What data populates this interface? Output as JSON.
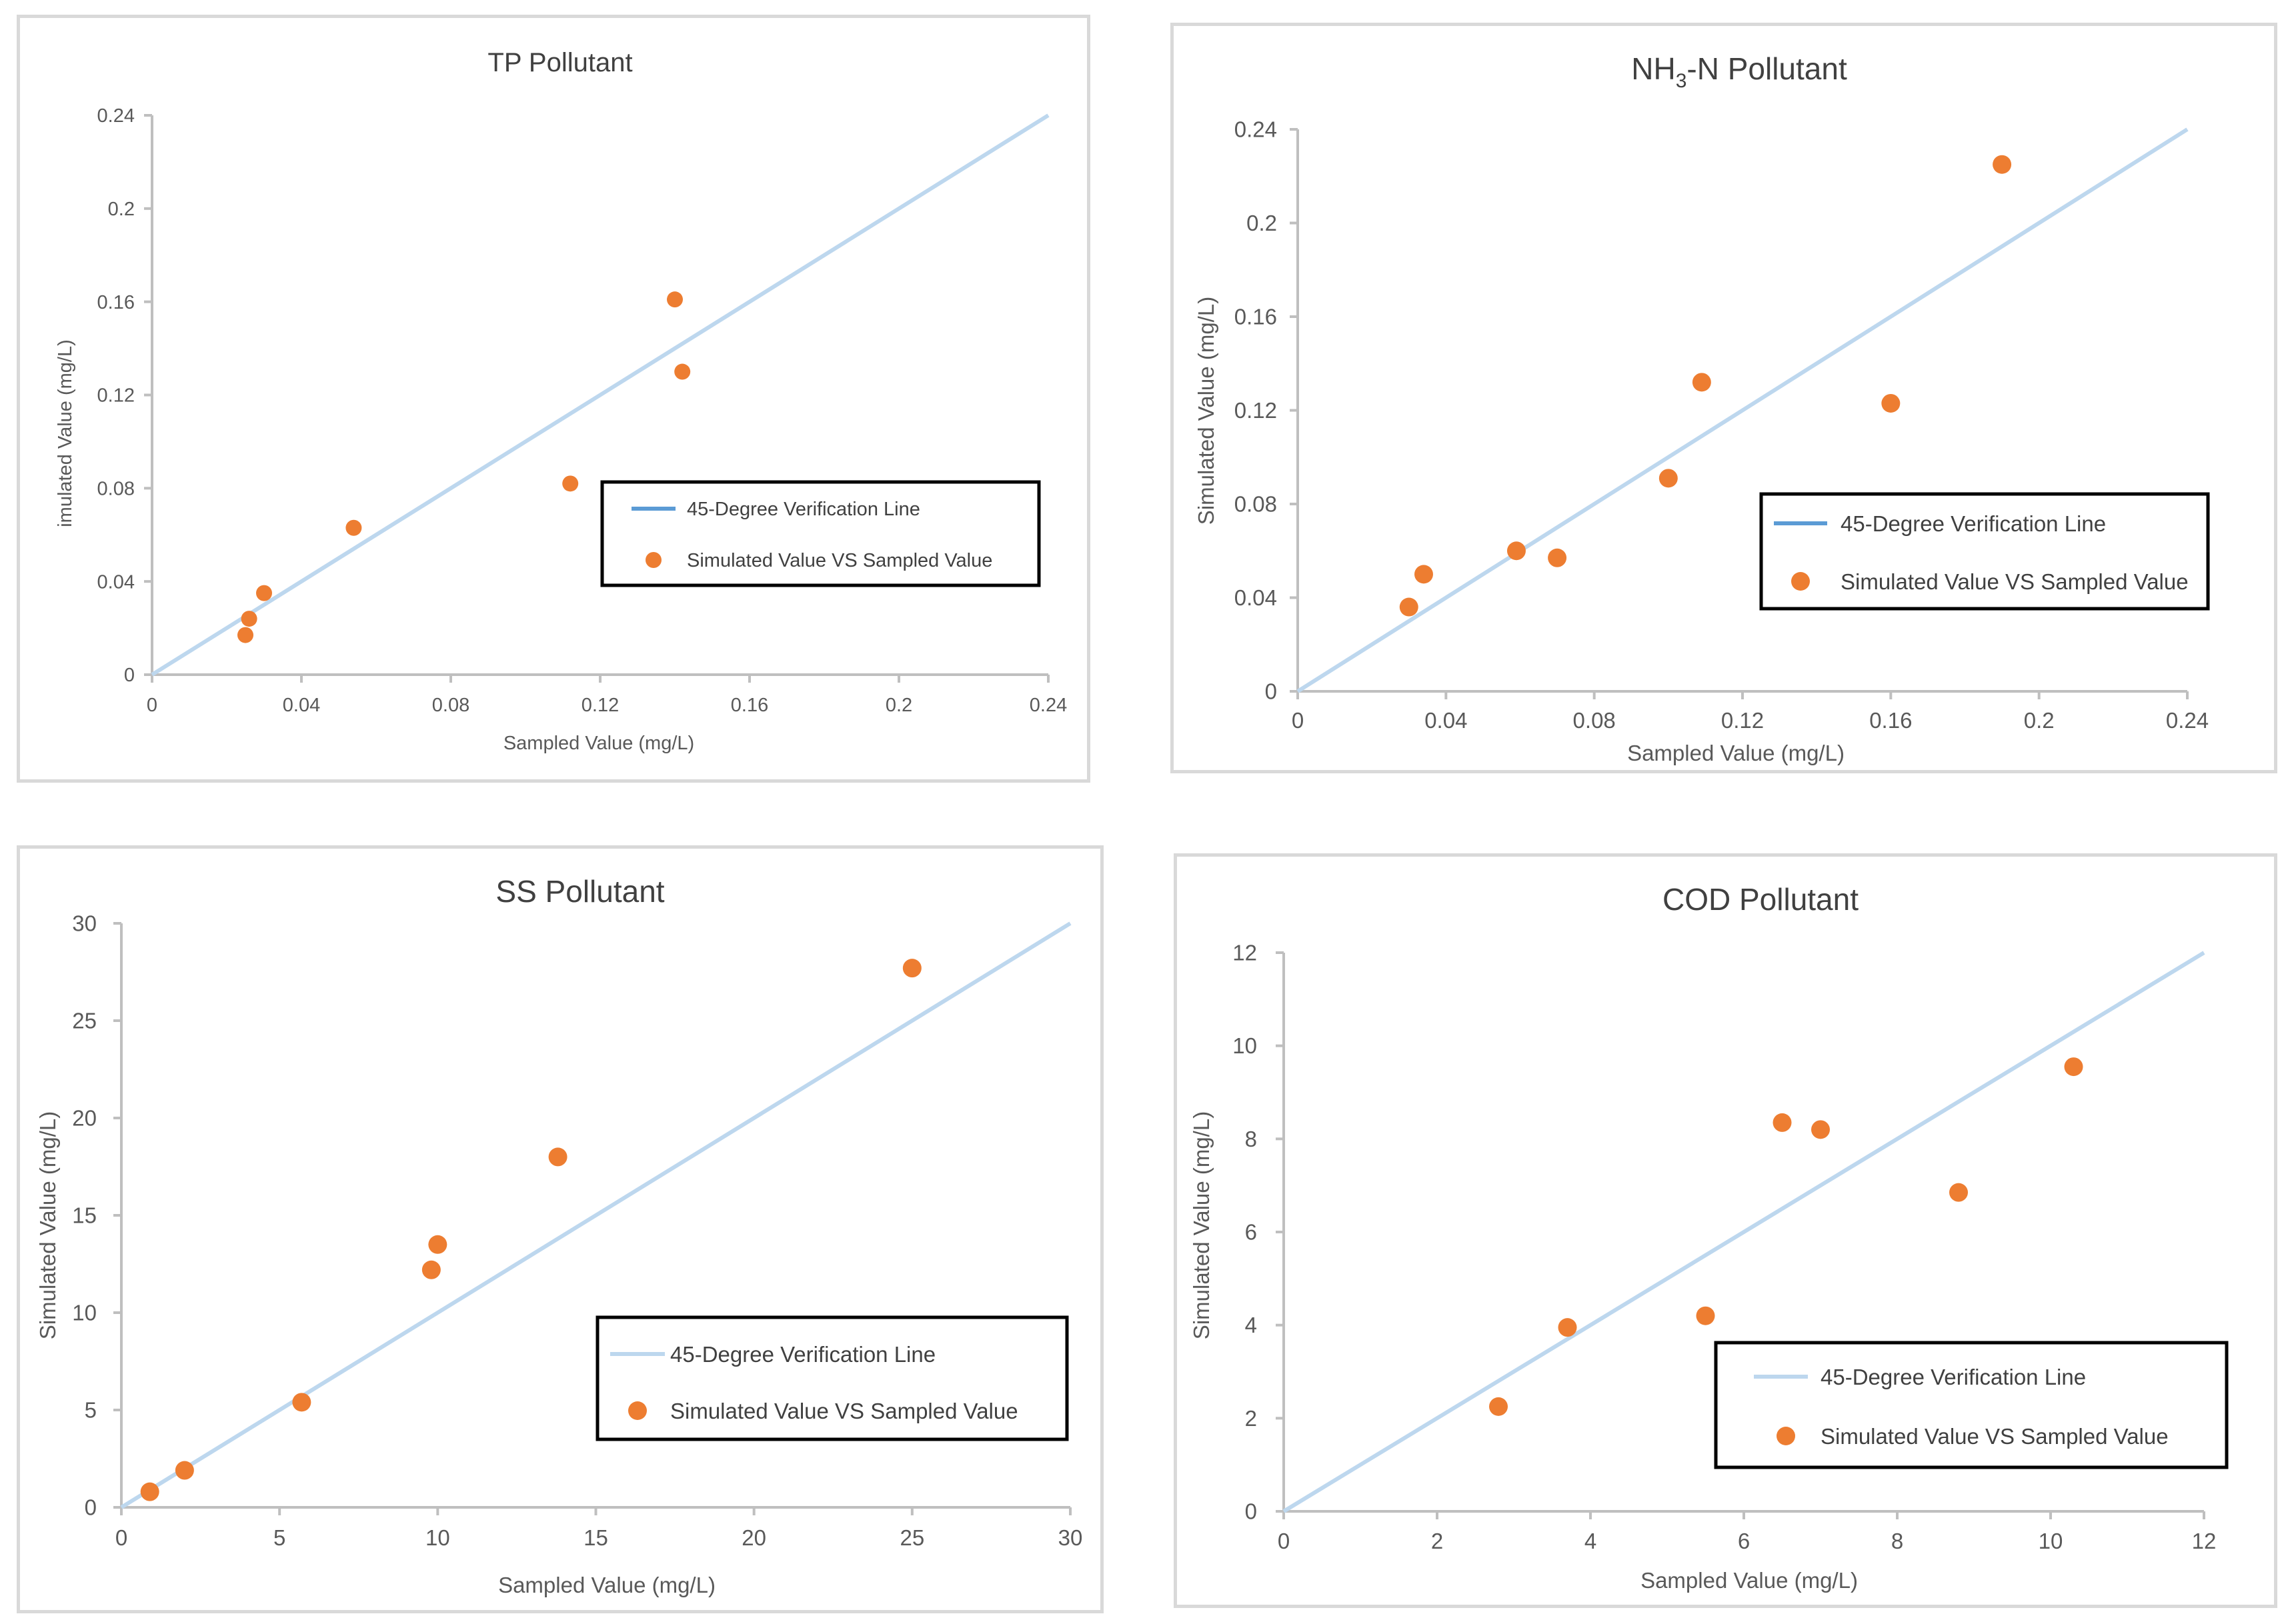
{
  "colors": {
    "verification_line_legend": "#5b9bd5",
    "verification_line": "#bdd7ee",
    "points": "#ed7d31",
    "axis": "#bfbfbf",
    "border": "#d9d9d9",
    "legend_border": "#000000"
  },
  "charts": [
    {
      "title": "TP Pollutant",
      "title_sub": "",
      "title_suffix": "",
      "xlabel": "Sampled Value (mg/L)",
      "ylabel": "imulated Value (mg/L)",
      "legend_line": "45-Degree Verification Line",
      "legend_points": "Simulated Value VS Sampled Value",
      "x_ticks": [
        "0",
        "0.04",
        "0.08",
        "0.12",
        "0.16",
        "0.2",
        "0.24"
      ],
      "y_ticks": [
        "0",
        "0.04",
        "0.08",
        "0.12",
        "0.16",
        "0.2",
        "0.24"
      ]
    },
    {
      "title": "NH",
      "title_sub": "3",
      "title_suffix": "-N Pollutant",
      "xlabel": "Sampled Value  (mg/L)",
      "ylabel": "Simulated Value  (mg/L)",
      "legend_line": "45-Degree Verification Line",
      "legend_points": "Simulated Value VS Sampled Value",
      "x_ticks": [
        "0",
        "0.04",
        "0.08",
        "0.12",
        "0.16",
        "0.2",
        "0.24"
      ],
      "y_ticks": [
        "0",
        "0.04",
        "0.08",
        "0.12",
        "0.16",
        "0.2",
        "0.24"
      ]
    },
    {
      "title": "SS Pollutant",
      "title_sub": "",
      "title_suffix": "",
      "xlabel": "Sampled Value  (mg/L)",
      "ylabel": "Simulated Value  (mg/L)",
      "legend_line": "45-Degree Verification Line",
      "legend_points": "Simulated Value VS Sampled Value",
      "x_ticks": [
        "0",
        "5",
        "10",
        "15",
        "20",
        "25",
        "30"
      ],
      "y_ticks": [
        "0",
        "5",
        "10",
        "15",
        "20",
        "25",
        "30"
      ]
    },
    {
      "title": "COD Pollutant",
      "title_sub": "",
      "title_suffix": "",
      "xlabel": "Sampled Value  (mg/L)",
      "ylabel": "Simulated Value  (mg/L)",
      "legend_line": "45-Degree Verification Line",
      "legend_points": "Simulated Value VS Sampled Value",
      "x_ticks": [
        "0",
        "2",
        "4",
        "6",
        "8",
        "10",
        "12"
      ],
      "y_ticks": [
        "0",
        "2",
        "4",
        "6",
        "8",
        "10",
        "12"
      ]
    }
  ],
  "chart_data": [
    {
      "type": "scatter",
      "title": "TP Pollutant",
      "xlabel": "Sampled Value (mg/L)",
      "ylabel": "imulated Value (mg/L)",
      "xlim": [
        0,
        0.24
      ],
      "ylim": [
        0,
        0.24
      ],
      "legend_position": "center-right",
      "series": [
        {
          "name": "45-Degree Verification Line",
          "kind": "line",
          "x": [
            0,
            0.24
          ],
          "y": [
            0,
            0.24
          ]
        },
        {
          "name": "Simulated Value VS Sampled Value",
          "kind": "scatter",
          "x": [
            0.025,
            0.026,
            0.03,
            0.054,
            0.112,
            0.14,
            0.142
          ],
          "y": [
            0.017,
            0.024,
            0.035,
            0.063,
            0.082,
            0.161,
            0.13
          ]
        }
      ]
    },
    {
      "type": "scatter",
      "title": "NH3-N Pollutant",
      "xlabel": "Sampled Value  (mg/L)",
      "ylabel": "Simulated Value  (mg/L)",
      "xlim": [
        0,
        0.24
      ],
      "ylim": [
        0,
        0.24
      ],
      "legend_position": "center-right",
      "series": [
        {
          "name": "45-Degree Verification Line",
          "kind": "line",
          "x": [
            0,
            0.24
          ],
          "y": [
            0,
            0.24
          ]
        },
        {
          "name": "Simulated Value VS Sampled Value",
          "kind": "scatter",
          "x": [
            0.03,
            0.034,
            0.059,
            0.07,
            0.1,
            0.109,
            0.16,
            0.19
          ],
          "y": [
            0.036,
            0.05,
            0.06,
            0.057,
            0.091,
            0.132,
            0.123,
            0.225
          ]
        }
      ]
    },
    {
      "type": "scatter",
      "title": "SS Pollutant",
      "xlabel": "Sampled Value  (mg/L)",
      "ylabel": "Simulated Value  (mg/L)",
      "xlim": [
        0,
        30
      ],
      "ylim": [
        0,
        30
      ],
      "legend_position": "bottom-right",
      "series": [
        {
          "name": "45-Degree Verification Line",
          "kind": "line",
          "x": [
            0,
            30
          ],
          "y": [
            0,
            30
          ]
        },
        {
          "name": "Simulated Value VS Sampled Value",
          "kind": "scatter",
          "x": [
            0.9,
            2.0,
            5.7,
            9.8,
            10.0,
            13.8,
            25.0
          ],
          "y": [
            0.8,
            1.9,
            5.4,
            12.2,
            13.5,
            18.0,
            27.7
          ]
        }
      ]
    },
    {
      "type": "scatter",
      "title": "COD Pollutant",
      "xlabel": "Sampled Value  (mg/L)",
      "ylabel": "Simulated Value  (mg/L)",
      "xlim": [
        0,
        12
      ],
      "ylim": [
        0,
        12
      ],
      "legend_position": "bottom-right",
      "series": [
        {
          "name": "45-Degree Verification Line",
          "kind": "line",
          "x": [
            0,
            12
          ],
          "y": [
            0,
            12
          ]
        },
        {
          "name": "Simulated Value VS Sampled Value",
          "kind": "scatter",
          "x": [
            2.8,
            3.7,
            5.5,
            6.5,
            7.0,
            8.8,
            10.3
          ],
          "y": [
            2.25,
            3.95,
            4.2,
            8.35,
            8.2,
            6.85,
            9.55
          ]
        }
      ]
    }
  ]
}
